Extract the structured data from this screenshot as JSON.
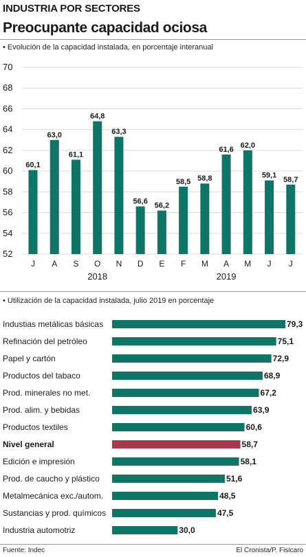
{
  "header": {
    "section": "INDUSTRIA POR SECTORES",
    "title": "Preocupante capacidad ociosa"
  },
  "colors": {
    "bar": "#0f7567",
    "highlight": "#a63a4e",
    "text": "#1a1a1a",
    "grid": "#d9d9d9"
  },
  "chart_data": [
    {
      "type": "bar",
      "subtitle": "• Evolución de la capacidad instalada, en porcentaje interanual",
      "categories": [
        "J",
        "A",
        "S",
        "O",
        "N",
        "D",
        "E",
        "F",
        "M",
        "A",
        "M",
        "J",
        "J"
      ],
      "values": [
        60.1,
        63.0,
        61.1,
        64.8,
        63.3,
        56.6,
        56.2,
        58.5,
        58.8,
        61.6,
        62.0,
        59.1,
        58.7
      ],
      "value_labels": [
        "60,1",
        "63,0",
        "61,1",
        "64,8",
        "63,3",
        "56,6",
        "56,2",
        "58,5",
        "58,8",
        "61,6",
        "62,0",
        "59,1",
        "58,7"
      ],
      "ylim": [
        52,
        70
      ],
      "yticks": [
        "52",
        "54",
        "56",
        "58",
        "60",
        "62",
        "64",
        "66",
        "68",
        "70"
      ],
      "year_labels": [
        "2018",
        "2019"
      ],
      "grid": true
    },
    {
      "type": "bar",
      "orientation": "horizontal",
      "subtitle": "• Utilización de la capacidad instalada, julio 2019 en porcentaje",
      "categories": [
        "Industias metálicas básicas",
        "Refinación del petróleo",
        "Papel y cartón",
        "Productos del tabaco",
        "Prod. minerales no met.",
        "Prod. alim. y bebidas",
        "Productos textiles",
        "Nivel general",
        "Edición e impresión",
        "Prod. de caucho y plástico",
        "Metalmecánica exc./autom.",
        "Sustancias y prod. químicos",
        "Industria automotriz"
      ],
      "values": [
        79.3,
        75.1,
        72.9,
        68.9,
        67.2,
        63.9,
        60.6,
        58.7,
        58.1,
        51.6,
        48.5,
        47.5,
        30.0
      ],
      "value_labels": [
        "79,3",
        "75,1",
        "72,9",
        "68,9",
        "67,2",
        "63,9",
        "60,6",
        "58,7",
        "58,1",
        "51,6",
        "48,5",
        "47,5",
        "30,0"
      ],
      "highlight_category": "Nivel general",
      "xlim": [
        0,
        79.3
      ]
    }
  ],
  "footer": {
    "source": "Fuente: Indec",
    "credit": "El Cronista/P. Fisicaro"
  }
}
